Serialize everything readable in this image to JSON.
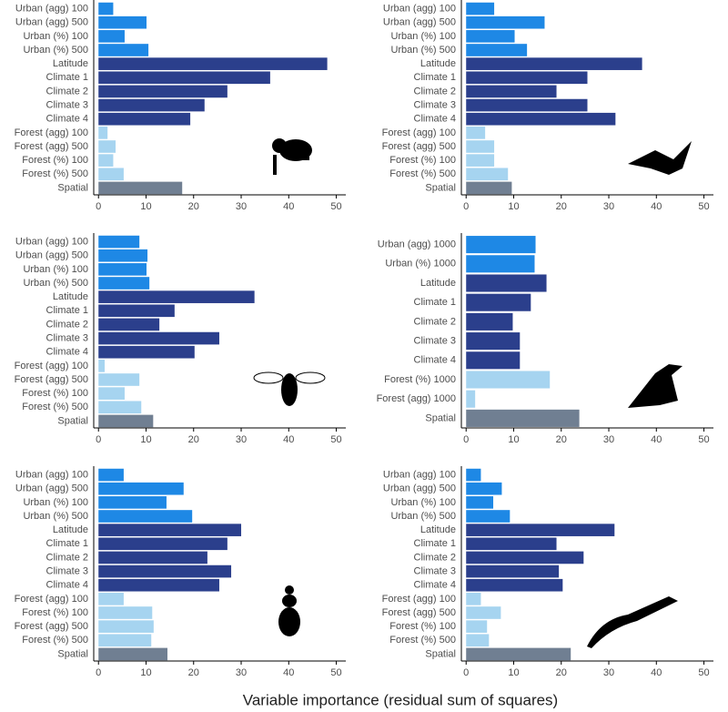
{
  "xlabel": "Variable importance (residual sum of squares)",
  "chart_data": [
    {
      "type": "bar",
      "orientation": "horizontal",
      "categories": [
        "Urban (agg) 100",
        "Urban (agg) 500",
        "Urban (%) 100",
        "Urban (%) 500",
        "Latitude",
        "Climate 1",
        "Climate 2",
        "Climate 3",
        "Climate 4",
        "Forest (agg) 100",
        "Forest (agg) 500",
        "Forest (%) 100",
        "Forest (%) 500",
        "Spatial"
      ],
      "values": [
        3.1,
        10.1,
        5.5,
        10.5,
        48.1,
        36.1,
        27.1,
        22.3,
        19.3,
        1.9,
        3.6,
        3.1,
        5.3,
        17.6
      ],
      "colors": [
        "#1e88e5",
        "#1e88e5",
        "#1e88e5",
        "#1e88e5",
        "#2b3f8c",
        "#2b3f8c",
        "#2b3f8c",
        "#2b3f8c",
        "#2b3f8c",
        "#a6d4f0",
        "#a6d4f0",
        "#a6d4f0",
        "#a6d4f0",
        "#707f92"
      ],
      "xlim": [
        -1,
        52
      ],
      "xticks": [
        0,
        10,
        20,
        30,
        40,
        50
      ]
    },
    {
      "type": "bar",
      "orientation": "horizontal",
      "categories": [
        "Urban (agg) 100",
        "Urban (agg) 500",
        "Urban (%) 100",
        "Urban (%) 500",
        "Latitude",
        "Climate 1",
        "Climate 2",
        "Climate 3",
        "Climate 4",
        "Forest (agg) 100",
        "Forest (agg) 500",
        "Forest (%) 100",
        "Forest (%) 500",
        "Spatial"
      ],
      "values": [
        5.9,
        16.5,
        10.2,
        12.8,
        37,
        25.5,
        19,
        25.5,
        31.4,
        4,
        5.9,
        5.9,
        8.8,
        9.6
      ],
      "colors": [
        "#1e88e5",
        "#1e88e5",
        "#1e88e5",
        "#1e88e5",
        "#2b3f8c",
        "#2b3f8c",
        "#2b3f8c",
        "#2b3f8c",
        "#2b3f8c",
        "#a6d4f0",
        "#a6d4f0",
        "#a6d4f0",
        "#a6d4f0",
        "#707f92"
      ],
      "xlim": [
        -1,
        52
      ],
      "xticks": [
        0,
        10,
        20,
        30,
        40,
        50
      ]
    },
    {
      "type": "bar",
      "orientation": "horizontal",
      "categories": [
        "Urban (agg) 100",
        "Urban (agg) 500",
        "Urban (%) 100",
        "Urban (%) 500",
        "Latitude",
        "Climate 1",
        "Climate 2",
        "Climate 3",
        "Climate 4",
        "Forest (agg) 100",
        "Forest (agg) 500",
        "Forest (%) 100",
        "Forest (%) 500",
        "Spatial"
      ],
      "values": [
        8.6,
        10.3,
        10.1,
        10.7,
        32.8,
        16,
        12.8,
        25.4,
        20.2,
        1.3,
        8.6,
        5.5,
        9,
        11.5
      ],
      "colors": [
        "#1e88e5",
        "#1e88e5",
        "#1e88e5",
        "#1e88e5",
        "#2b3f8c",
        "#2b3f8c",
        "#2b3f8c",
        "#2b3f8c",
        "#2b3f8c",
        "#a6d4f0",
        "#a6d4f0",
        "#a6d4f0",
        "#a6d4f0",
        "#707f92"
      ],
      "xlim": [
        -1,
        52
      ],
      "xticks": [
        0,
        10,
        20,
        30,
        40,
        50
      ]
    },
    {
      "type": "bar",
      "orientation": "horizontal",
      "categories": [
        "Urban (agg) 1000",
        "Urban (%) 1000",
        "Latitude",
        "Climate 1",
        "Climate 2",
        "Climate 3",
        "Climate 4",
        "Forest (%) 1000",
        "Forest (agg) 1000",
        "Spatial"
      ],
      "values": [
        14.6,
        14.4,
        16.9,
        13.6,
        9.8,
        11.3,
        11.3,
        17.6,
        1.9,
        23.8
      ],
      "colors": [
        "#1e88e5",
        "#1e88e5",
        "#2b3f8c",
        "#2b3f8c",
        "#2b3f8c",
        "#2b3f8c",
        "#2b3f8c",
        "#a6d4f0",
        "#a6d4f0",
        "#707f92"
      ],
      "xlim": [
        -1,
        52
      ],
      "xticks": [
        0,
        10,
        20,
        30,
        40,
        50
      ]
    },
    {
      "type": "bar",
      "orientation": "horizontal",
      "categories": [
        "Urban (agg) 100",
        "Urban (agg) 500",
        "Urban (%) 100",
        "Urban (%) 500",
        "Latitude",
        "Climate 1",
        "Climate 2",
        "Climate 3",
        "Climate 4",
        "Forest (agg) 100",
        "Forest (%) 100",
        "Forest (agg) 500",
        "Forest (%) 500",
        "Spatial"
      ],
      "values": [
        5.3,
        17.9,
        14.3,
        19.7,
        30,
        27.1,
        22.9,
        27.9,
        25.4,
        5.3,
        11.3,
        11.6,
        11.1,
        14.5
      ],
      "colors": [
        "#1e88e5",
        "#1e88e5",
        "#1e88e5",
        "#1e88e5",
        "#2b3f8c",
        "#2b3f8c",
        "#2b3f8c",
        "#2b3f8c",
        "#2b3f8c",
        "#a6d4f0",
        "#a6d4f0",
        "#a6d4f0",
        "#a6d4f0",
        "#707f92"
      ],
      "xlim": [
        -1,
        52
      ],
      "xticks": [
        0,
        10,
        20,
        30,
        40,
        50
      ]
    },
    {
      "type": "bar",
      "orientation": "horizontal",
      "categories": [
        "Urban (agg) 100",
        "Urban (agg) 500",
        "Urban (%) 100",
        "Urban (%) 500",
        "Latitude",
        "Climate 1",
        "Climate 2",
        "Climate 3",
        "Climate 4",
        "Forest (agg) 100",
        "Forest (agg) 500",
        "Forest (%) 100",
        "Forest (%) 500",
        "Spatial"
      ],
      "values": [
        3.1,
        7.5,
        5.7,
        9.2,
        31.2,
        19,
        24.7,
        19.5,
        20.3,
        3.1,
        7.3,
        4.4,
        4.8,
        22
      ],
      "colors": [
        "#1e88e5",
        "#1e88e5",
        "#1e88e5",
        "#1e88e5",
        "#2b3f8c",
        "#2b3f8c",
        "#2b3f8c",
        "#2b3f8c",
        "#2b3f8c",
        "#a6d4f0",
        "#a6d4f0",
        "#a6d4f0",
        "#a6d4f0",
        "#707f92"
      ],
      "xlim": [
        -1,
        52
      ],
      "xticks": [
        0,
        10,
        20,
        30,
        40,
        50
      ]
    }
  ]
}
